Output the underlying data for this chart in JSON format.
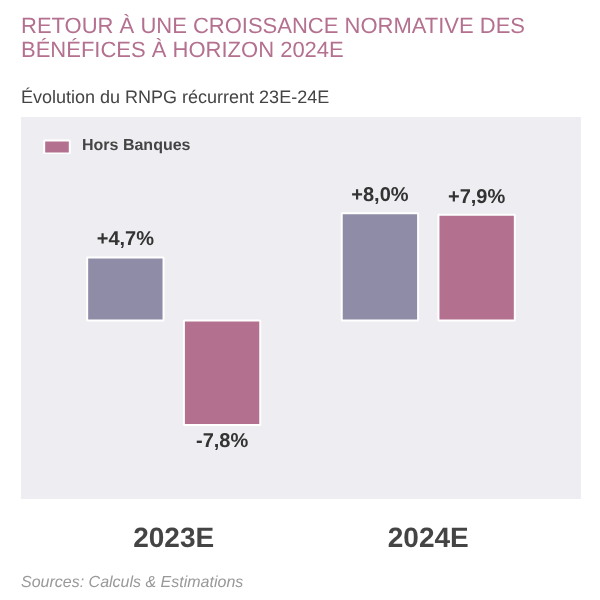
{
  "chart_data": {
    "type": "bar",
    "title": "RETOUR À UNE CROISSANCE NORMATIVE DES BÉNÉFICES À HORIZON 2024E",
    "subtitle": "Évolution du RNPG récurrent 23E-24E",
    "categories": [
      "2023E",
      "2024E"
    ],
    "series": [
      {
        "color": "#8e8ca6",
        "values": [
          4.7,
          8.0
        ],
        "value_labels": [
          "+4,7%",
          "+8,0%"
        ]
      },
      {
        "name": "Hors Banques",
        "color": "#b4708f",
        "values": [
          -7.8,
          7.9
        ],
        "value_labels": [
          "-7,8%",
          "+7,9%"
        ]
      }
    ],
    "legend": "top left",
    "grid": false,
    "annotations": [
      "Sources: Calculs & Estimations"
    ]
  }
}
